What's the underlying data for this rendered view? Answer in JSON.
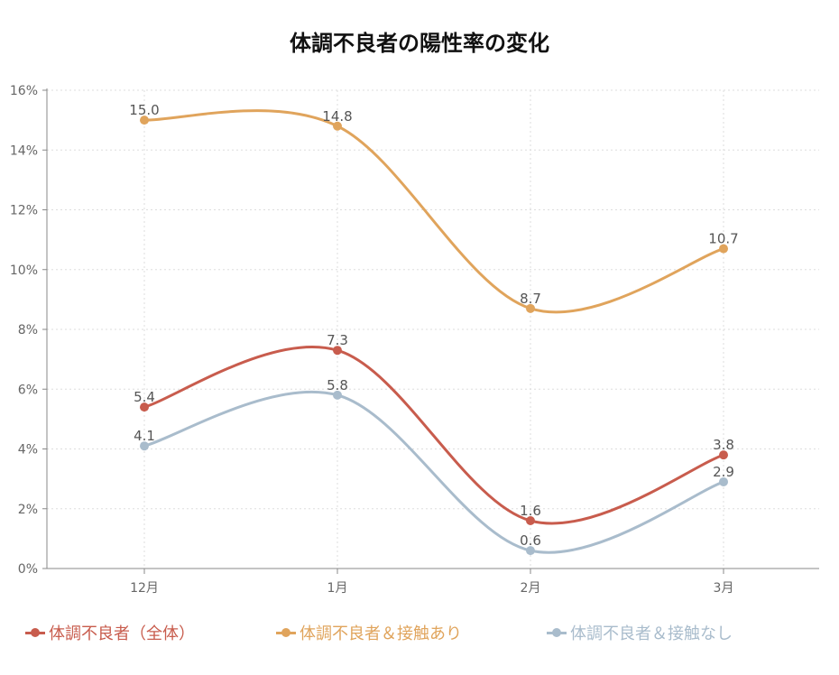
{
  "chart_data": {
    "type": "line",
    "title": "体調不良者の陽性率の変化",
    "categories": [
      "12月",
      "1月",
      "2月",
      "3月"
    ],
    "ylim": [
      0,
      16
    ],
    "yticks": [
      "0%",
      "2%",
      "4%",
      "6%",
      "8%",
      "10%",
      "12%",
      "14%",
      "16%"
    ],
    "grid": true,
    "legend_position": "bottom",
    "series": [
      {
        "name": "体調不良者（全体）",
        "color": "#c85c4d",
        "values": [
          5.4,
          7.3,
          1.6,
          3.8
        ],
        "labels": [
          "5.4",
          "7.3",
          "1.6",
          "3.8"
        ]
      },
      {
        "name": "体調不良者＆接触あり",
        "color": "#e0a45c",
        "values": [
          15.0,
          14.8,
          8.7,
          10.7
        ],
        "labels": [
          "15.0",
          "14.8",
          "8.7",
          "10.7"
        ]
      },
      {
        "name": "体調不良者＆接触なし",
        "color": "#a9bccc",
        "values": [
          4.1,
          5.8,
          0.6,
          2.9
        ],
        "labels": [
          "4.1",
          "5.8",
          "0.6",
          "2.9"
        ]
      }
    ]
  }
}
